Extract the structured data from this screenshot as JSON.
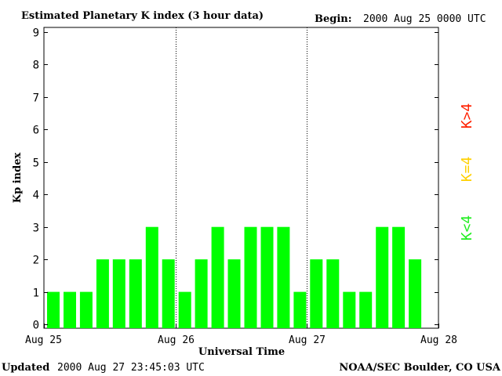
{
  "header": {
    "title": "Estimated Planetary K index (3 hour data)",
    "begin_label": "Begin:",
    "begin_value": "2000 Aug 25 0000 UTC"
  },
  "footer": {
    "updated_label": "Updated",
    "updated_value": "2000 Aug 27 23:45:03 UTC",
    "source": "NOAA/SEC Boulder, CO USA"
  },
  "legend": {
    "high": "K>4",
    "equal": "K=4",
    "low": "K<4",
    "high_color": "#ff2000",
    "equal_color": "#ffd000",
    "low_color": "#22ee22"
  },
  "chart_data": {
    "type": "bar",
    "title": "Estimated Planetary K index (3 hour data)",
    "xlabel": "Universal Time",
    "ylabel": "Kp index",
    "ylim": [
      0,
      9
    ],
    "yticks": [
      "0",
      "1",
      "2",
      "3",
      "4",
      "5",
      "6",
      "7",
      "8",
      "9"
    ],
    "xticks": [
      "Aug 25",
      "Aug 26",
      "Aug 27",
      "Aug 28"
    ],
    "bar_color": "#00ff00",
    "grid": false,
    "day_separators": true,
    "values": [
      1,
      1,
      1,
      2,
      2,
      2,
      3,
      2,
      1,
      2,
      3,
      2,
      3,
      3,
      3,
      1,
      2,
      2,
      1,
      1,
      3,
      3,
      2
    ]
  }
}
